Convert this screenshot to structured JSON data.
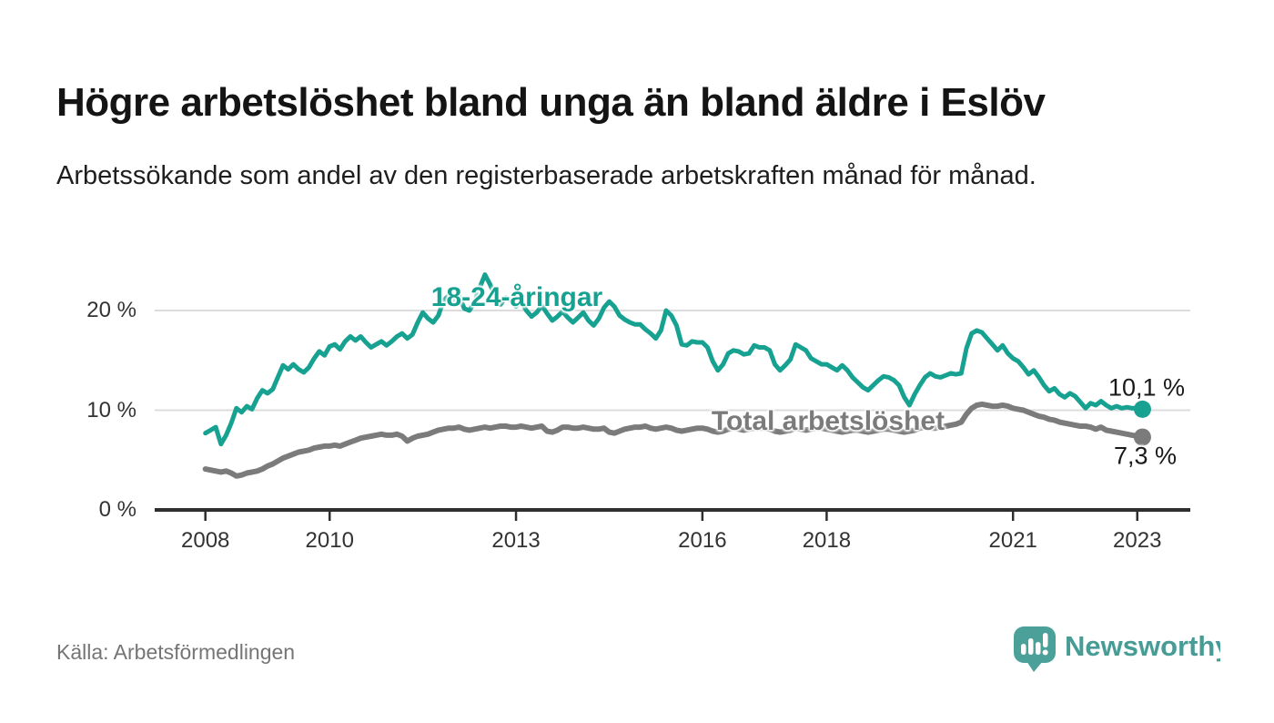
{
  "header": {
    "title": "Högre arbetslöshet bland unga än bland äldre i Eslöv",
    "subtitle": "Arbetssökande som andel av den registerbaserade arbetskraften månad för månad."
  },
  "footer": {
    "source": "Källa: Arbetsförmedlingen",
    "logo_text": "Newsworthy",
    "logo_icon": "speech-bubble-bar-chart-icon",
    "logo_color": "#4ba19a"
  },
  "chart_data": {
    "type": "line",
    "title": "Högre arbetslöshet bland unga än bland äldre i Eslöv",
    "subtitle": "Arbetssökande som andel av den registerbaserade arbetskraften månad för månad.",
    "unit": "percent of registered labour force",
    "frequency": "monthly",
    "x_start": "2008-01",
    "x_end": "2023-02",
    "x_tick_years": [
      2008,
      2010,
      2013,
      2016,
      2018,
      2021,
      2023
    ],
    "x_tick_labels": [
      "2008",
      "2010",
      "2013",
      "2016",
      "2018",
      "2021",
      "2023"
    ],
    "y_axis": {
      "ticks": [
        {
          "value": 0,
          "label": "0 %"
        },
        {
          "value": 10,
          "label": "10 %"
        },
        {
          "value": 20,
          "label": "20 %"
        }
      ],
      "min": 0,
      "max": 25,
      "grid": true
    },
    "legend_position": "inline-labels",
    "series": [
      {
        "name": "18-24-åringar",
        "color": "#16a191",
        "end_label": "10,1 %",
        "end_value": 10.1,
        "values": [
          7.7,
          8.0,
          8.3,
          6.6,
          7.5,
          8.7,
          10.2,
          9.8,
          10.4,
          10.1,
          11.2,
          12.0,
          11.7,
          12.1,
          13.3,
          14.5,
          14.1,
          14.6,
          14.1,
          13.8,
          14.3,
          15.2,
          15.9,
          15.5,
          16.4,
          16.6,
          16.1,
          16.9,
          17.4,
          17.0,
          17.4,
          16.8,
          16.3,
          16.6,
          16.9,
          16.5,
          16.9,
          17.4,
          17.7,
          17.2,
          17.6,
          18.8,
          19.8,
          19.2,
          18.8,
          19.5,
          21.0,
          21.5,
          20.9,
          21.4,
          20.2,
          20.0,
          20.8,
          22.3,
          23.6,
          22.6,
          21.4,
          20.6,
          21.3,
          21.0,
          20.4,
          20.9,
          20.0,
          19.4,
          19.8,
          20.5,
          19.7,
          19.0,
          19.4,
          19.9,
          19.3,
          18.8,
          19.3,
          19.8,
          19.0,
          18.5,
          19.2,
          20.3,
          20.9,
          20.4,
          19.5,
          19.1,
          18.8,
          18.6,
          18.6,
          18.1,
          17.7,
          17.2,
          18.0,
          20.0,
          19.5,
          18.5,
          16.6,
          16.5,
          16.9,
          16.8,
          16.8,
          16.3,
          14.9,
          14.0,
          14.6,
          15.7,
          16.0,
          15.9,
          15.6,
          15.7,
          16.5,
          16.3,
          16.3,
          16.0,
          14.6,
          14.0,
          14.5,
          15.1,
          16.6,
          16.3,
          16.0,
          15.2,
          14.9,
          14.6,
          14.6,
          14.3,
          14.0,
          14.5,
          14.0,
          13.3,
          12.8,
          12.3,
          12.0,
          12.5,
          13.0,
          13.4,
          13.3,
          13.0,
          12.5,
          11.3,
          10.5,
          11.6,
          12.5,
          13.3,
          13.7,
          13.4,
          13.3,
          13.5,
          13.7,
          13.6,
          13.7,
          16.2,
          17.7,
          18.0,
          17.8,
          17.2,
          16.6,
          16.0,
          16.5,
          15.7,
          15.2,
          14.9,
          14.3,
          13.6,
          14.0,
          13.3,
          12.5,
          11.9,
          12.2,
          11.6,
          11.3,
          11.7,
          11.4,
          10.8,
          10.2,
          10.7,
          10.5,
          10.9,
          10.5,
          10.2,
          10.4,
          10.2,
          10.3,
          10.2,
          10.2,
          10.1
        ]
      },
      {
        "name": "Total arbetslöshet",
        "color": "#7b7b7b",
        "end_label": "7,3 %",
        "end_value": 7.3,
        "values": [
          4.1,
          4.0,
          3.9,
          3.8,
          3.9,
          3.7,
          3.4,
          3.5,
          3.7,
          3.8,
          3.9,
          4.1,
          4.4,
          4.6,
          4.9,
          5.2,
          5.4,
          5.6,
          5.8,
          5.9,
          6.0,
          6.2,
          6.3,
          6.4,
          6.4,
          6.5,
          6.4,
          6.6,
          6.8,
          7.0,
          7.2,
          7.3,
          7.4,
          7.5,
          7.6,
          7.5,
          7.5,
          7.6,
          7.4,
          6.9,
          7.2,
          7.4,
          7.5,
          7.6,
          7.8,
          8.0,
          8.1,
          8.2,
          8.2,
          8.3,
          8.1,
          8.0,
          8.1,
          8.2,
          8.3,
          8.2,
          8.3,
          8.4,
          8.4,
          8.3,
          8.3,
          8.4,
          8.3,
          8.2,
          8.3,
          8.4,
          7.9,
          7.8,
          8.0,
          8.3,
          8.3,
          8.2,
          8.2,
          8.3,
          8.2,
          8.1,
          8.1,
          8.2,
          7.8,
          7.7,
          7.9,
          8.1,
          8.2,
          8.3,
          8.3,
          8.4,
          8.2,
          8.1,
          8.2,
          8.3,
          8.2,
          8.0,
          7.9,
          8.0,
          8.1,
          8.2,
          8.2,
          8.1,
          7.9,
          7.8,
          7.9,
          8.1,
          8.2,
          8.1,
          8.0,
          8.1,
          8.2,
          8.2,
          8.2,
          8.1,
          7.9,
          7.8,
          7.9,
          8.0,
          8.2,
          8.1,
          8.0,
          8.1,
          8.2,
          8.2,
          8.1,
          8.0,
          7.9,
          7.8,
          7.9,
          8.0,
          8.0,
          7.9,
          7.8,
          7.9,
          8.0,
          8.1,
          8.1,
          8.0,
          7.9,
          7.8,
          7.9,
          8.0,
          8.2,
          8.3,
          8.2,
          8.2,
          8.3,
          8.4,
          8.5,
          8.6,
          8.8,
          9.6,
          10.2,
          10.5,
          10.6,
          10.5,
          10.4,
          10.4,
          10.5,
          10.4,
          10.2,
          10.1,
          10.0,
          9.8,
          9.6,
          9.4,
          9.3,
          9.1,
          9.0,
          8.8,
          8.7,
          8.6,
          8.5,
          8.4,
          8.4,
          8.3,
          8.1,
          8.3,
          8.0,
          7.9,
          7.8,
          7.7,
          7.6,
          7.5,
          7.4,
          7.3
        ]
      }
    ]
  }
}
